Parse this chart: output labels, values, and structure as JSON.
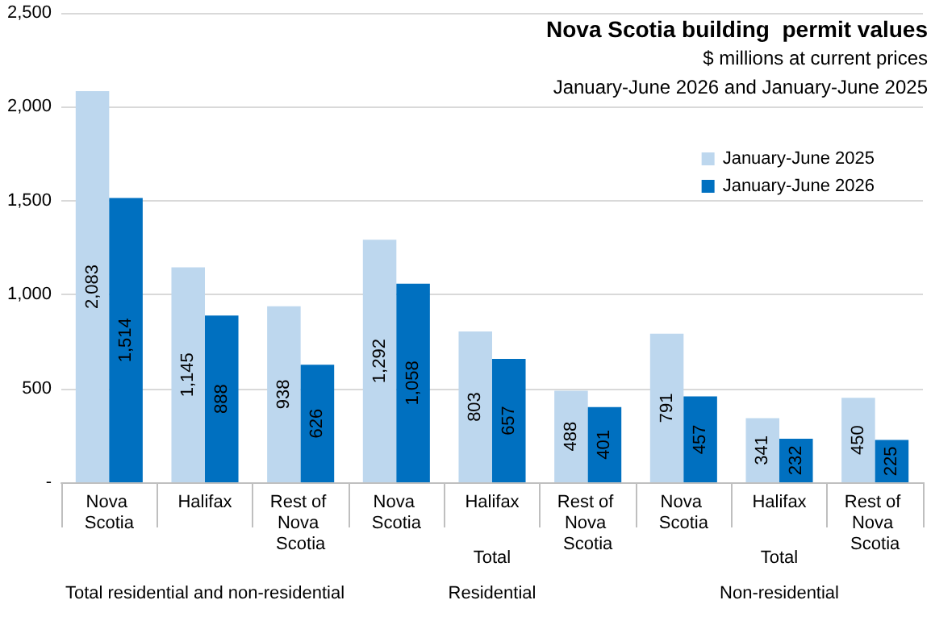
{
  "chart_data": {
    "type": "bar",
    "title": "Nova Scotia building  permit values",
    "subtitle": "$ millions at current prices\nJanuary-June 2026 and January-June 2025",
    "categories": [
      "Nova Scotia",
      "Halifax",
      "Rest of Nova Scotia",
      "Nova Scotia",
      "Halifax",
      "Rest of Nova Scotia",
      "Nova Scotia",
      "Halifax",
      "Rest of Nova Scotia"
    ],
    "series": [
      {
        "name": "January-June 2025",
        "color": "#bdd7ee",
        "values": [
          2083,
          1145,
          938,
          1292,
          803,
          488,
          791,
          341,
          450
        ],
        "value_labels": [
          "2,083",
          "1,145",
          "938",
          "1,292",
          "803",
          "488",
          "791",
          "341",
          "450"
        ]
      },
      {
        "name": "January-June 2026",
        "color": "#0070c0",
        "values": [
          1514,
          888,
          626,
          1058,
          657,
          401,
          457,
          232,
          225
        ],
        "value_labels": [
          "1,514",
          "888",
          "626",
          "1,058",
          "657",
          "401",
          "457",
          "232",
          "225"
        ]
      }
    ],
    "ylim": [
      0,
      2500
    ],
    "yticks": [
      {
        "value": 0,
        "label": "-"
      },
      500,
      {
        "value": 1000,
        "label": "1,000"
      },
      {
        "value": 1500,
        "label": "1,500"
      },
      {
        "value": 2000,
        "label": "2,000"
      },
      {
        "value": 2500,
        "label": "2,500"
      }
    ],
    "grid": "y",
    "legend": "top right",
    "annotations": [
      "Total residential and non-residential",
      "Total",
      "Residential",
      "Total",
      "Non-residential"
    ]
  }
}
